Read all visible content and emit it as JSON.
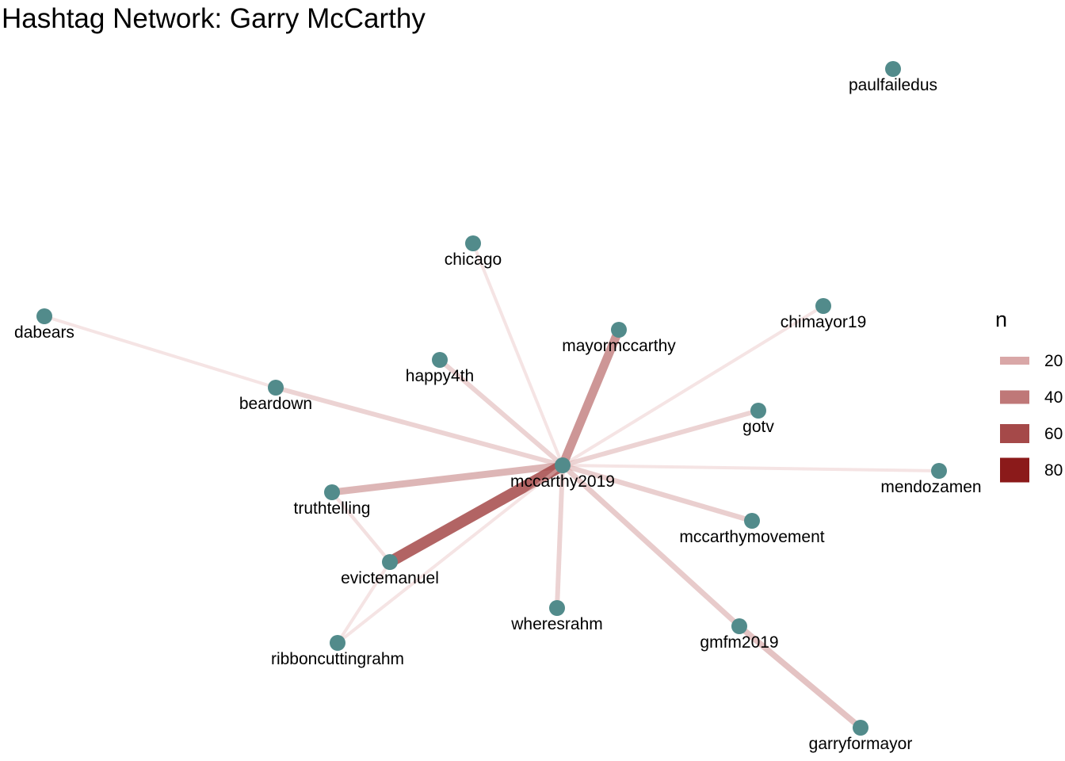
{
  "title": "Hashtag Network: Garry McCarthy",
  "colors": {
    "node": "#528b8b",
    "edge_low": "#e8c3c3",
    "edge_high": "#8b1a1a"
  },
  "legend": {
    "title": "n",
    "items": [
      {
        "label": "20",
        "value": 20
      },
      {
        "label": "40",
        "value": 40
      },
      {
        "label": "60",
        "value": 60
      },
      {
        "label": "80",
        "value": 80
      }
    ]
  },
  "nodes": [
    {
      "id": "paulfailedus"
    },
    {
      "id": "chicago"
    },
    {
      "id": "chimayor19"
    },
    {
      "id": "dabears"
    },
    {
      "id": "mayormccarthy"
    },
    {
      "id": "happy4th"
    },
    {
      "id": "beardown"
    },
    {
      "id": "gotv"
    },
    {
      "id": "mccarthy2019"
    },
    {
      "id": "mendozamen"
    },
    {
      "id": "truthtelling"
    },
    {
      "id": "mccarthymovement"
    },
    {
      "id": "evictemanuel"
    },
    {
      "id": "wheresrahm"
    },
    {
      "id": "gmfm2019"
    },
    {
      "id": "ribboncuttingrahm"
    },
    {
      "id": "garryformayor"
    }
  ],
  "edges": [
    {
      "from": "dabears",
      "to": "beardown",
      "n": 8
    },
    {
      "from": "beardown",
      "to": "mccarthy2019",
      "n": 18
    },
    {
      "from": "chicago",
      "to": "mccarthy2019",
      "n": 8
    },
    {
      "from": "chimayor19",
      "to": "mccarthy2019",
      "n": 8
    },
    {
      "from": "happy4th",
      "to": "mccarthy2019",
      "n": 18
    },
    {
      "from": "mayormccarthy",
      "to": "mccarthy2019",
      "n": 44
    },
    {
      "from": "gotv",
      "to": "mccarthy2019",
      "n": 18
    },
    {
      "from": "mendozamen",
      "to": "mccarthy2019",
      "n": 8
    },
    {
      "from": "truthtelling",
      "to": "mccarthy2019",
      "n": 32
    },
    {
      "from": "mccarthymovement",
      "to": "mccarthy2019",
      "n": 20
    },
    {
      "from": "evictemanuel",
      "to": "mccarthy2019",
      "n": 60
    },
    {
      "from": "wheresrahm",
      "to": "mccarthy2019",
      "n": 18
    },
    {
      "from": "gmfm2019",
      "to": "mccarthy2019",
      "n": 22
    },
    {
      "from": "gmfm2019",
      "to": "garryformayor",
      "n": 26
    },
    {
      "from": "truthtelling",
      "to": "evictemanuel",
      "n": 10
    },
    {
      "from": "ribboncuttingrahm",
      "to": "evictemanuel",
      "n": 8
    },
    {
      "from": "ribboncuttingrahm",
      "to": "mccarthy2019",
      "n": 8
    }
  ]
}
